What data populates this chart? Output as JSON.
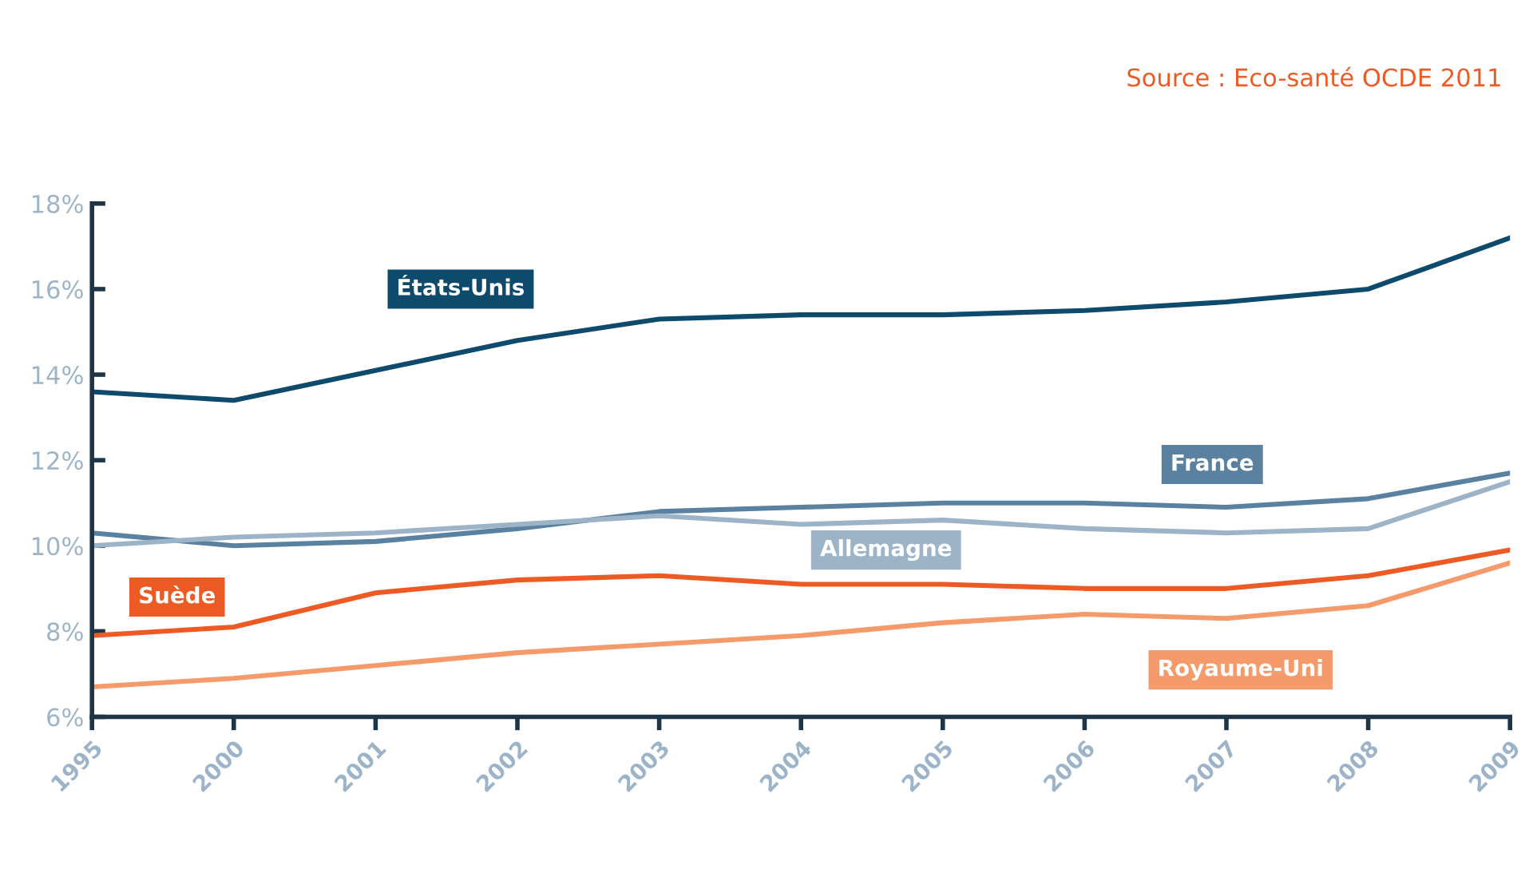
{
  "chart_data": {
    "type": "line",
    "categories": [
      "1995",
      "2000",
      "2001",
      "2002",
      "2003",
      "2004",
      "2005",
      "2006",
      "2007",
      "2008",
      "2009"
    ],
    "series": [
      {
        "name": "États-Unis",
        "color": "#0e4a6b",
        "values": [
          13.6,
          13.4,
          14.1,
          14.8,
          15.3,
          15.4,
          15.4,
          15.5,
          15.7,
          16.0,
          17.2
        ]
      },
      {
        "name": "France",
        "color": "#5a82a0",
        "values": [
          10.3,
          10.0,
          10.1,
          10.4,
          10.8,
          10.9,
          11.0,
          11.0,
          10.9,
          11.1,
          11.7
        ]
      },
      {
        "name": "Allemagne",
        "color": "#9db4c8",
        "values": [
          10.0,
          10.2,
          10.3,
          10.5,
          10.7,
          10.5,
          10.6,
          10.4,
          10.3,
          10.4,
          11.5
        ]
      },
      {
        "name": "Suède",
        "color": "#ee5a24",
        "values": [
          7.9,
          8.1,
          8.9,
          9.2,
          9.3,
          9.1,
          9.1,
          9.0,
          9.0,
          9.3,
          9.9
        ]
      },
      {
        "name": "Royaume-Uni",
        "color": "#f59a6a",
        "values": [
          6.7,
          6.9,
          7.2,
          7.5,
          7.7,
          7.9,
          8.2,
          8.4,
          8.3,
          8.6,
          9.6
        ]
      }
    ],
    "ylim": [
      6,
      18
    ],
    "yticks": [
      {
        "value": 6,
        "label": "6%"
      },
      {
        "value": 8,
        "label": "8%"
      },
      {
        "value": 10,
        "label": "10%"
      },
      {
        "value": 12,
        "label": "12%"
      },
      {
        "value": 14,
        "label": "14%"
      },
      {
        "value": 16,
        "label": "16%"
      },
      {
        "value": 18,
        "label": "18%"
      }
    ],
    "grid": false,
    "legend": false,
    "marker": "none",
    "line_style": "solid",
    "annotations": [
      "Source : Eco-santé OCDE 2011"
    ]
  }
}
